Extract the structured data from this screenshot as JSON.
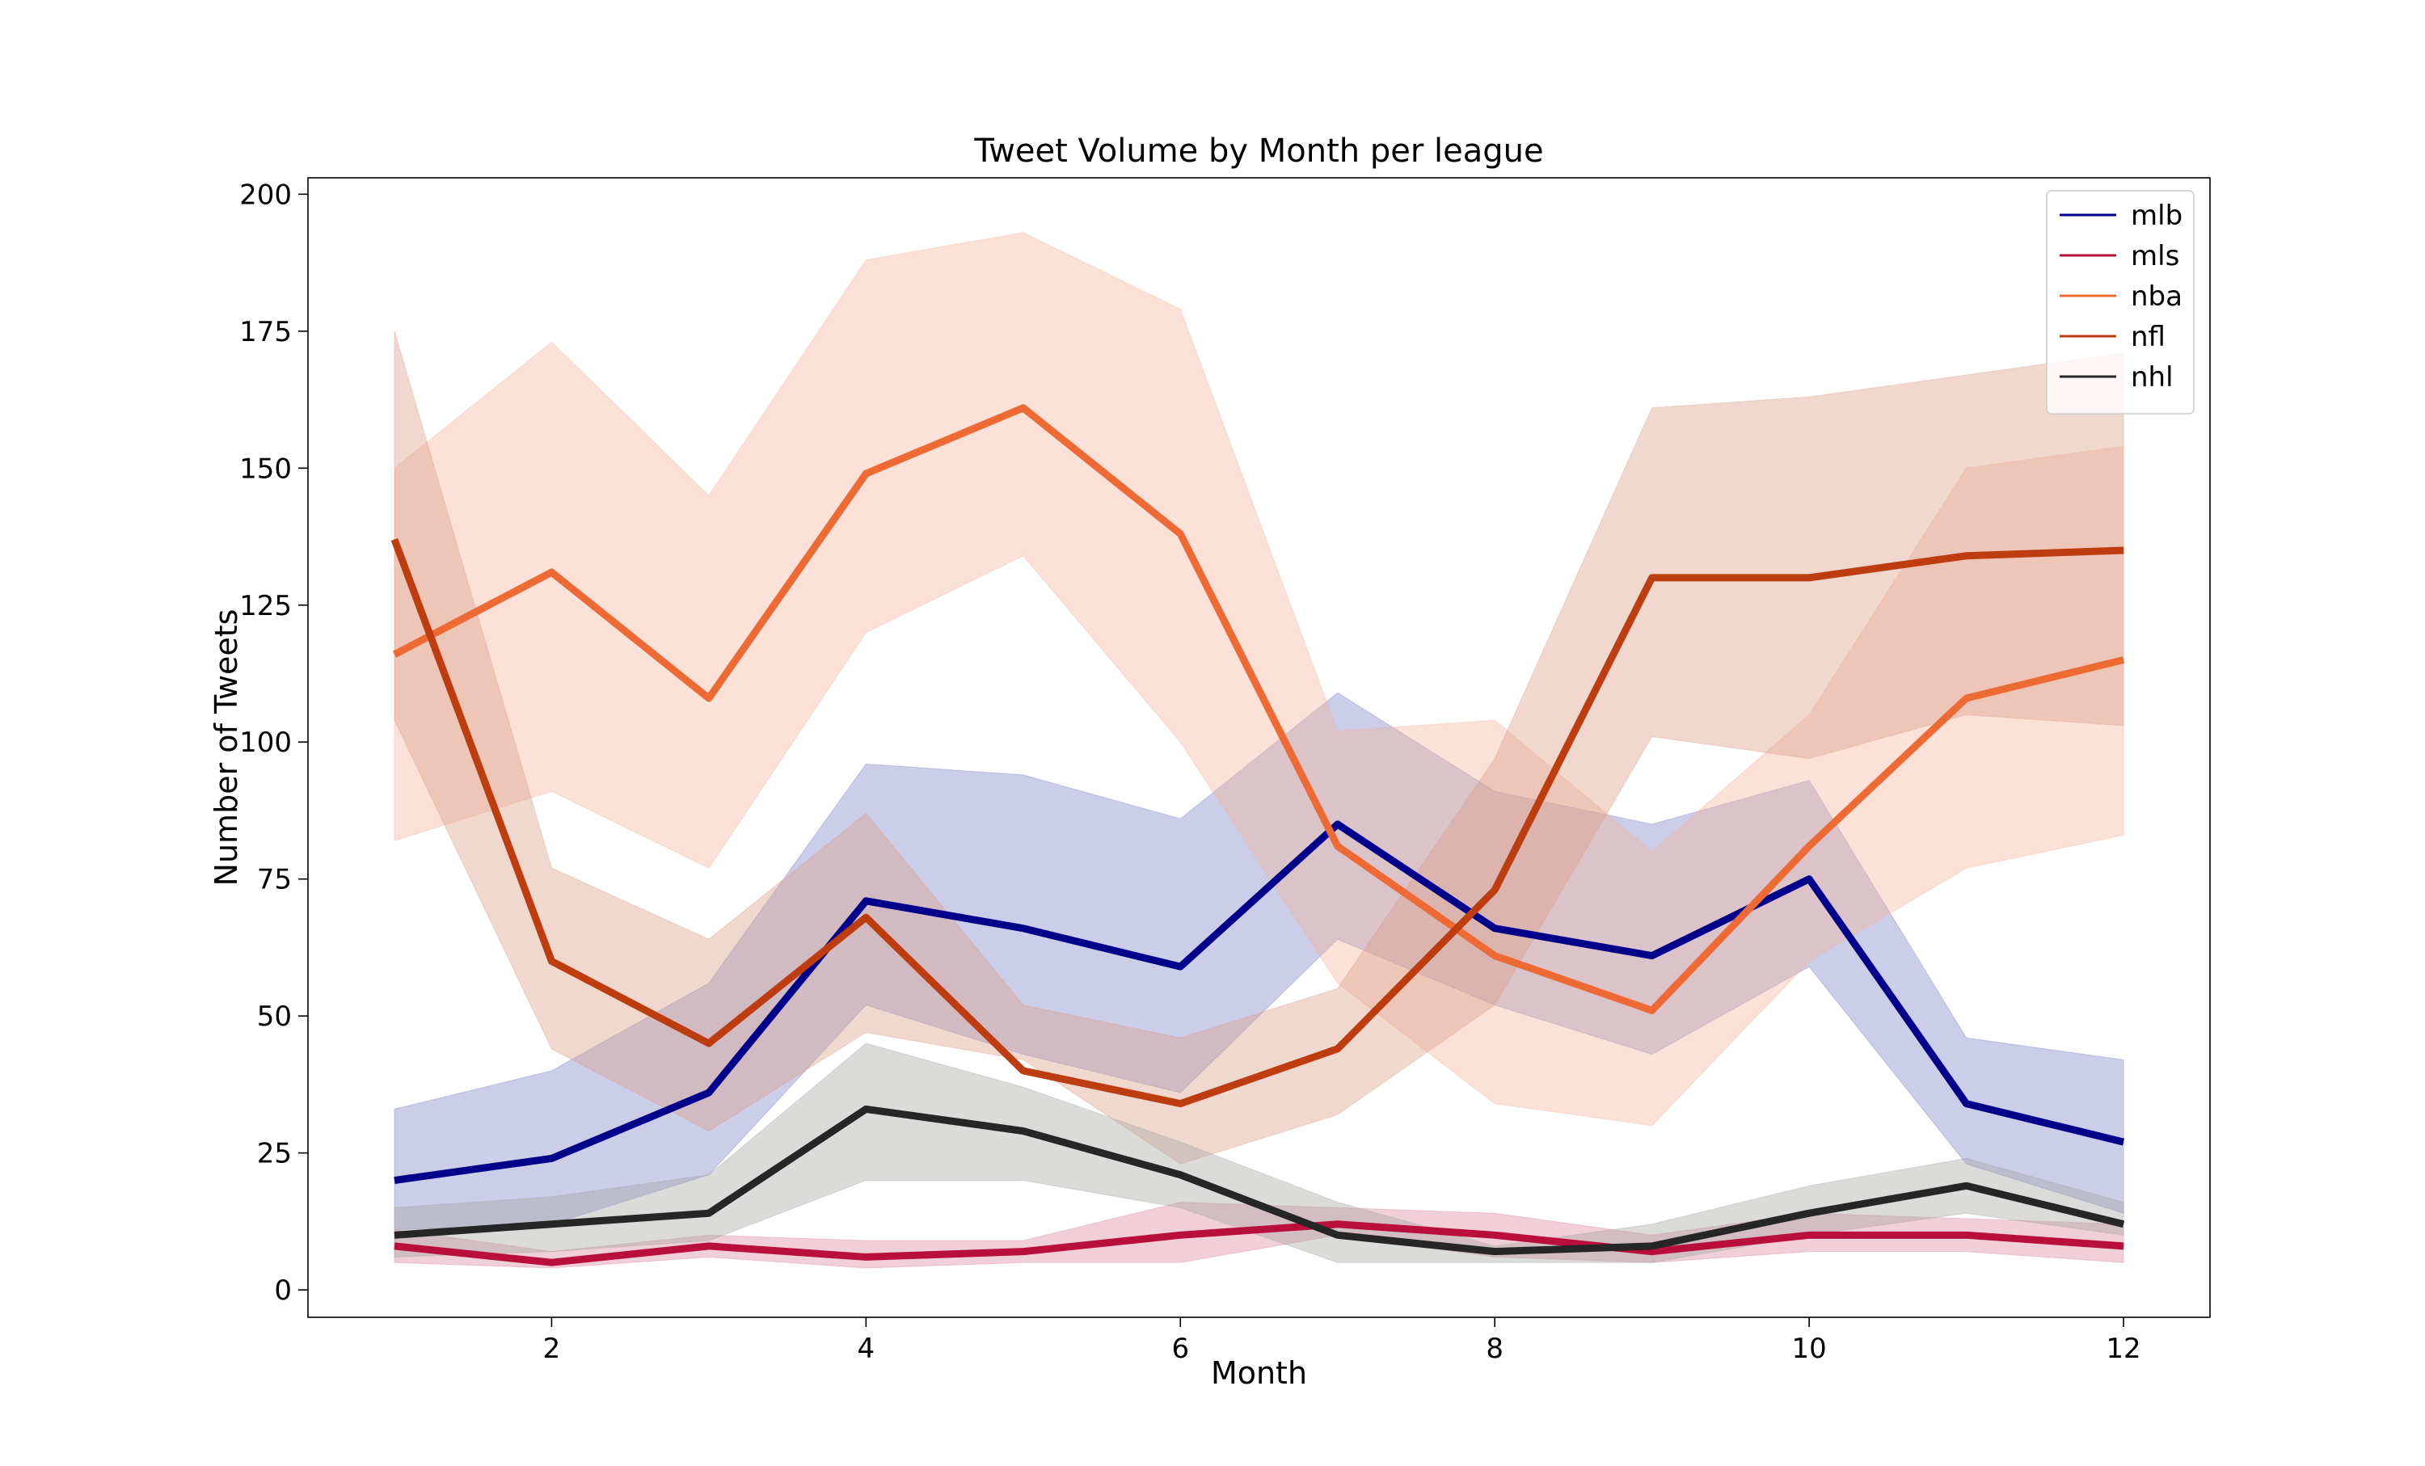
{
  "chart_data": {
    "type": "line",
    "title": "Tweet Volume by Month per league",
    "xlabel": "Month",
    "ylabel": "Number of Tweets",
    "xlim": [
      0.45,
      12.55
    ],
    "ylim": [
      -5,
      203
    ],
    "xticks": [
      2,
      4,
      6,
      8,
      10,
      12
    ],
    "yticks": [
      0,
      25,
      50,
      75,
      100,
      125,
      150,
      175,
      200
    ],
    "grid": false,
    "legend_position": "top-right",
    "x": [
      1,
      2,
      3,
      4,
      5,
      6,
      7,
      8,
      9,
      10,
      11,
      12
    ],
    "series": [
      {
        "name": "mlb",
        "color": "#00008b",
        "band_color": "#8083c8",
        "values": [
          20,
          24,
          36,
          71,
          66,
          59,
          85,
          66,
          61,
          75,
          34,
          27
        ],
        "lower": [
          11,
          12,
          21,
          52,
          43,
          36,
          64,
          52,
          43,
          59,
          23,
          14
        ],
        "upper": [
          33,
          40,
          56,
          96,
          94,
          86,
          109,
          91,
          85,
          93,
          46,
          42
        ]
      },
      {
        "name": "mls",
        "color": "#b80f3b",
        "band_color": "#dc87a0",
        "values": [
          8,
          5,
          8,
          6,
          7,
          10,
          12,
          10,
          7,
          10,
          10,
          8
        ],
        "lower": [
          5,
          4,
          6,
          4,
          5,
          5,
          10,
          6,
          5,
          7,
          7,
          5
        ],
        "upper": [
          11,
          7,
          10,
          9,
          9,
          16,
          15,
          14,
          10,
          14,
          13,
          12
        ]
      },
      {
        "name": "nba",
        "color": "#ee6a35",
        "band_color": "#f6b49a",
        "values": [
          116,
          131,
          108,
          149,
          161,
          138,
          81,
          61,
          51,
          81,
          108,
          115
        ],
        "lower": [
          82,
          91,
          77,
          120,
          134,
          100,
          56,
          34,
          30,
          60,
          77,
          83
        ],
        "upper": [
          150,
          173,
          145,
          188,
          193,
          179,
          102,
          104,
          80,
          105,
          150,
          154
        ]
      },
      {
        "name": "nfl",
        "color": "#bd3c10",
        "band_color": "#dc9e88",
        "values": [
          137,
          60,
          45,
          68,
          40,
          34,
          44,
          73,
          130,
          130,
          134,
          135
        ],
        "lower": [
          104,
          44,
          29,
          47,
          42,
          23,
          32,
          52,
          101,
          97,
          105,
          103
        ],
        "upper": [
          175,
          77,
          64,
          87,
          52,
          46,
          55,
          97,
          161,
          163,
          167,
          171
        ]
      },
      {
        "name": "nhl",
        "color": "#262626",
        "band_color": "#a4a6a1",
        "values": [
          10,
          12,
          14,
          33,
          29,
          21,
          10,
          7,
          8,
          14,
          19,
          12
        ],
        "lower": [
          6,
          7,
          9,
          20,
          20,
          15,
          5,
          5,
          5,
          10,
          14,
          10
        ],
        "upper": [
          15,
          17,
          21,
          45,
          37,
          27,
          16,
          8,
          12,
          19,
          24,
          16
        ]
      }
    ]
  }
}
